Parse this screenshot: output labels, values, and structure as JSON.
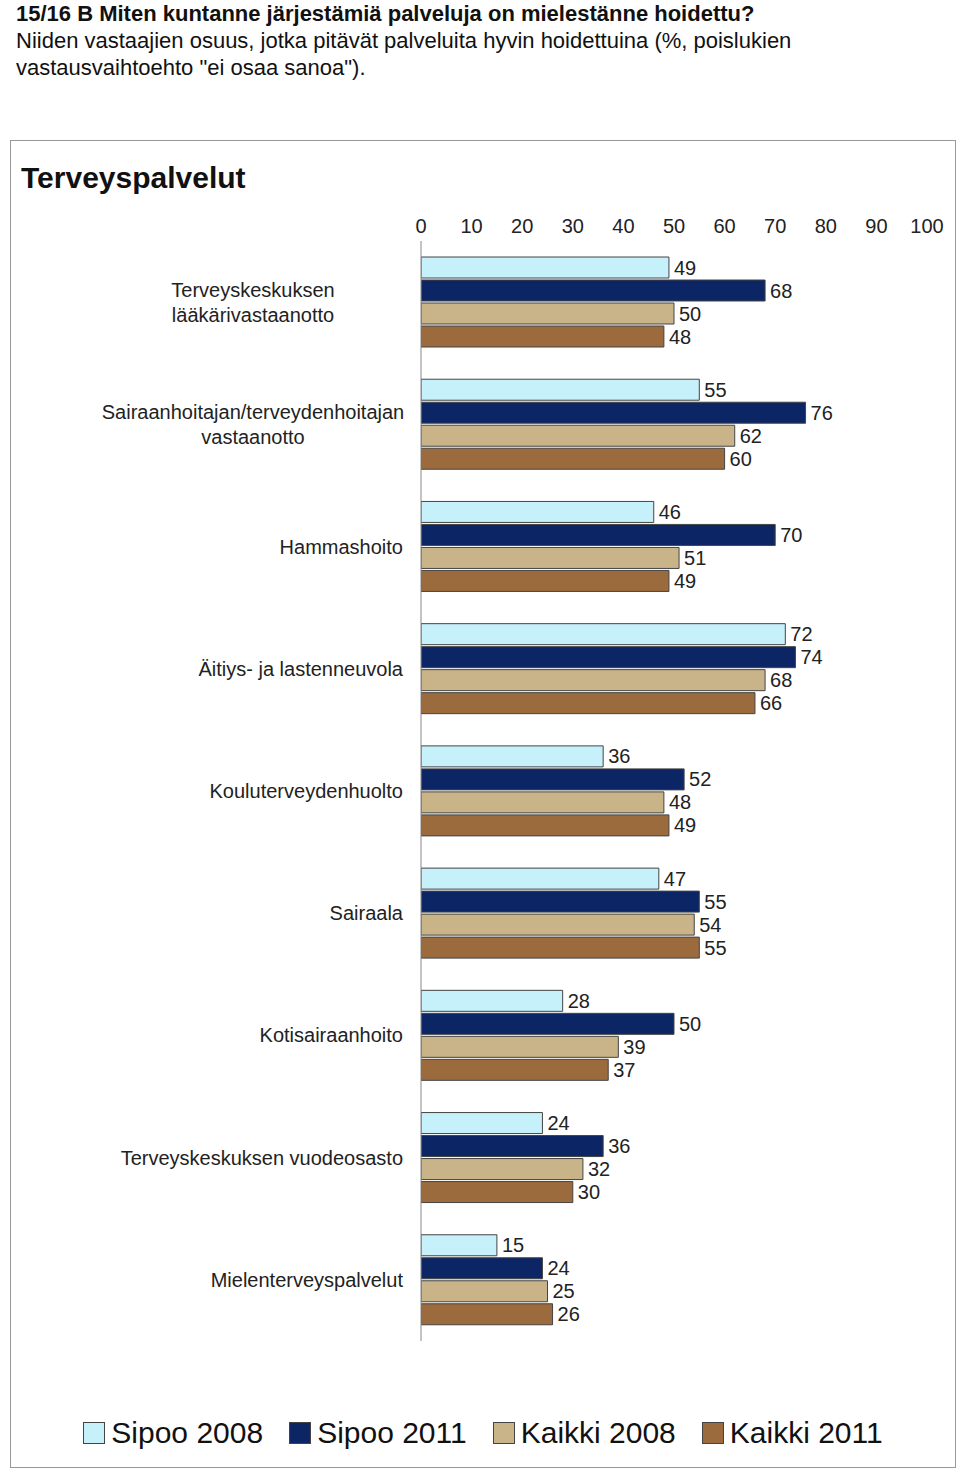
{
  "chart_data": {
    "type": "bar",
    "orientation": "horizontal",
    "header": "15/16 B Miten kuntanne järjestämiä palveluja on mielestänne hoidettu?",
    "subtitle": "Niiden vastaajien osuus, jotka pitävät palveluita hyvin hoidettuina (%, poislukien vastausvaihtoehto \"ei osaa sanoa\").",
    "title": "Terveyspalvelut",
    "categories": [
      "Terveyskeskuksen lääkärivastaanotto",
      "Sairaanhoitajan/terveydenhoitajan vastaanotto",
      "Hammashoito",
      "Äitiys- ja lastenneuvola",
      "Kouluterveydenhuolto",
      "Sairaala",
      "Kotisairaanhoito",
      "Terveyskeskuksen vuodeosasto",
      "Mielenterveyspalvelut"
    ],
    "series": [
      {
        "name": "Sipoo 2008",
        "color": "#c6f0fa",
        "values": [
          49,
          55,
          46,
          72,
          36,
          47,
          28,
          24,
          15
        ]
      },
      {
        "name": "Sipoo 2011",
        "color": "#0b2565",
        "values": [
          68,
          76,
          70,
          74,
          52,
          55,
          50,
          36,
          24
        ]
      },
      {
        "name": "Kaikki 2008",
        "color": "#c9b48a",
        "values": [
          50,
          62,
          51,
          68,
          48,
          54,
          39,
          32,
          25
        ]
      },
      {
        "name": "Kaikki 2011",
        "color": "#9b6a3d",
        "values": [
          48,
          60,
          49,
          66,
          49,
          55,
          37,
          30,
          26
        ]
      }
    ],
    "xlim": [
      0,
      100
    ],
    "xticks": [
      0,
      10,
      20,
      30,
      40,
      50,
      60,
      70,
      80,
      90,
      100
    ],
    "data_labels": true,
    "grid": false,
    "legend": "bottom"
  }
}
